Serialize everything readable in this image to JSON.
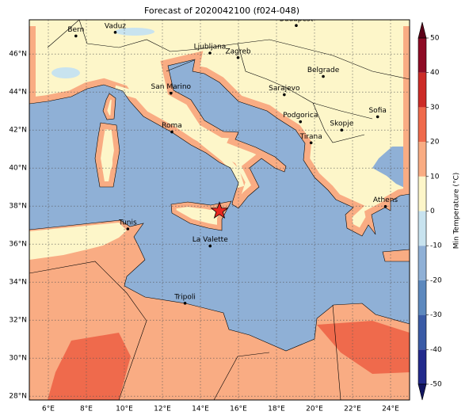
{
  "title": "Forecast of 2020042100 (f024-048)",
  "map": {
    "lon_range": [
      5,
      25
    ],
    "lat_range": [
      27.8,
      47.8
    ],
    "grid": true,
    "lon_ticks": [
      {
        "value": 6,
        "label": "6°E"
      },
      {
        "value": 8,
        "label": "8°E"
      },
      {
        "value": 10,
        "label": "10°E"
      },
      {
        "value": 12,
        "label": "12°E"
      },
      {
        "value": 14,
        "label": "14°E"
      },
      {
        "value": 16,
        "label": "16°E"
      },
      {
        "value": 18,
        "label": "18°E"
      },
      {
        "value": 20,
        "label": "20°E"
      },
      {
        "value": 22,
        "label": "22°E"
      },
      {
        "value": 24,
        "label": "24°E"
      }
    ],
    "lat_ticks": [
      {
        "value": 28,
        "label": "28°N"
      },
      {
        "value": 30,
        "label": "30°N"
      },
      {
        "value": 32,
        "label": "32°N"
      },
      {
        "value": 34,
        "label": "34°N"
      },
      {
        "value": 36,
        "label": "36°N"
      },
      {
        "value": 38,
        "label": "38°N"
      },
      {
        "value": 40,
        "label": "40°N"
      },
      {
        "value": 42,
        "label": "42°N"
      },
      {
        "value": 44,
        "label": "44°N"
      },
      {
        "value": 46,
        "label": "46°N"
      }
    ],
    "cities": [
      {
        "name": "Bern",
        "lon": 7.45,
        "lat": 46.95
      },
      {
        "name": "Vaduz",
        "lon": 9.52,
        "lat": 47.14
      },
      {
        "name": "Budapest",
        "lon": 19.04,
        "lat": 47.5
      },
      {
        "name": "Ljubljana",
        "lon": 14.5,
        "lat": 46.05
      },
      {
        "name": "Zagreb",
        "lon": 15.98,
        "lat": 45.81
      },
      {
        "name": "Belgrade",
        "lon": 20.46,
        "lat": 44.82
      },
      {
        "name": "San Marino",
        "lon": 12.45,
        "lat": 43.94
      },
      {
        "name": "Sarajevo",
        "lon": 18.41,
        "lat": 43.86
      },
      {
        "name": "Sofia",
        "lon": 23.32,
        "lat": 42.7
      },
      {
        "name": "Podgorica",
        "lon": 19.26,
        "lat": 42.44
      },
      {
        "name": "Skopje",
        "lon": 21.43,
        "lat": 42.0
      },
      {
        "name": "Roma",
        "lon": 12.5,
        "lat": 41.9
      },
      {
        "name": "Tirana",
        "lon": 19.82,
        "lat": 41.33
      },
      {
        "name": "Athens",
        "lon": 23.73,
        "lat": 37.98
      },
      {
        "name": "Tunis",
        "lon": 10.18,
        "lat": 36.8
      },
      {
        "name": "La Valette",
        "lon": 14.51,
        "lat": 35.9
      },
      {
        "name": "Tripoli",
        "lon": 13.19,
        "lat": 32.89
      }
    ],
    "marker": {
      "lon": 15.0,
      "lat": 37.75,
      "color": "#e8261f"
    }
  },
  "colorbar": {
    "label": "Min Temperature (°C)",
    "range": [
      -50,
      50
    ],
    "ticks": [
      -50,
      -40,
      -30,
      -20,
      -10,
      0,
      10,
      20,
      30,
      40,
      50
    ],
    "colors": [
      "#222a8c",
      "#3a5ba6",
      "#5d89be",
      "#8fb0d6",
      "#c8e3ef",
      "#fdf6c9",
      "#f9ac83",
      "#ef6a4c",
      "#cc2b27",
      "#8e0b25"
    ],
    "under_color": "#121560",
    "over_color": "#5c0018"
  }
}
